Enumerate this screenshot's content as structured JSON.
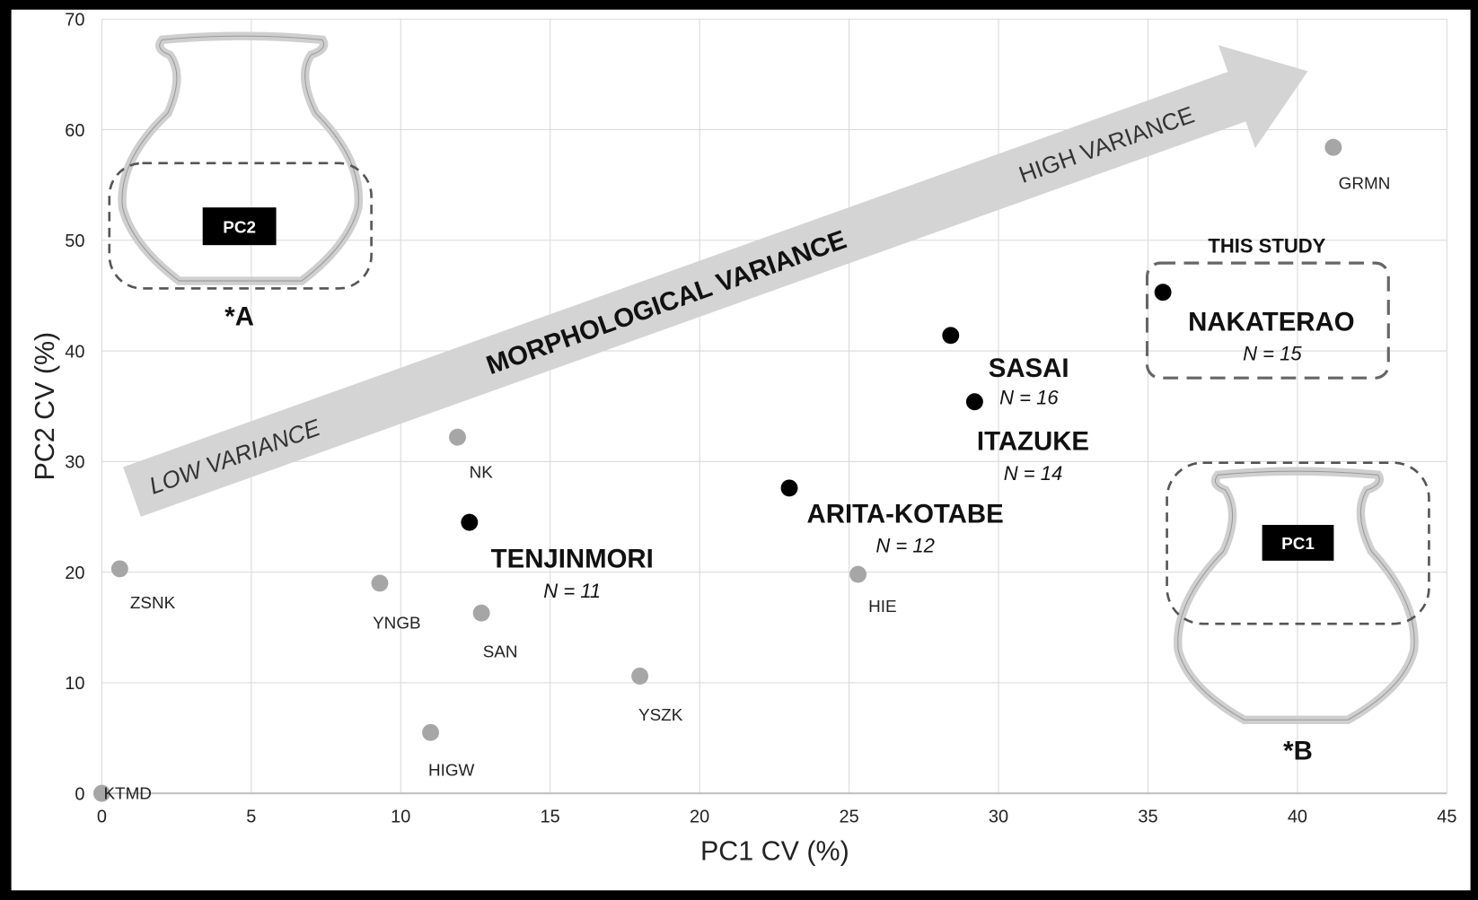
{
  "chart_data": {
    "type": "scatter",
    "title": "",
    "xlabel": "PC1 CV (%)",
    "ylabel": "PC2 CV (%)",
    "xlim": [
      0,
      45
    ],
    "ylim": [
      0,
      70
    ],
    "xticks": [
      0,
      5,
      10,
      15,
      20,
      25,
      30,
      35,
      40,
      45
    ],
    "yticks": [
      0,
      10,
      20,
      30,
      40,
      50,
      60,
      70
    ],
    "grid": true,
    "colors": {
      "reference": "#a6a6a6",
      "study": "#000000"
    },
    "points": [
      {
        "label": "GRMN",
        "x": 41.2,
        "y": 58.4,
        "group": "reference"
      },
      {
        "label": "KTMD",
        "x": 0.0,
        "y": 0.0,
        "group": "reference"
      },
      {
        "label": "ZSNK",
        "x": 0.6,
        "y": 20.3,
        "group": "reference"
      },
      {
        "label": "YNGB",
        "x": 9.3,
        "y": 19.0,
        "group": "reference"
      },
      {
        "label": "NK",
        "x": 11.9,
        "y": 32.2,
        "group": "reference"
      },
      {
        "label": "SAN",
        "x": 12.7,
        "y": 16.3,
        "group": "reference"
      },
      {
        "label": "HIE",
        "x": 25.3,
        "y": 19.8,
        "group": "reference"
      },
      {
        "label": "YSZK",
        "x": 18.0,
        "y": 10.6,
        "group": "reference"
      },
      {
        "label": "HIGW",
        "x": 11.0,
        "y": 5.5,
        "group": "reference"
      },
      {
        "label": "TENJINMORI",
        "n": "N = 11",
        "x": 12.3,
        "y": 24.5,
        "group": "study"
      },
      {
        "label": "ARITA-KOTABE",
        "n": "N = 12",
        "x": 23.0,
        "y": 27.6,
        "group": "study"
      },
      {
        "label": "SASAI",
        "n": "N = 16",
        "x": 28.4,
        "y": 41.4,
        "group": "study"
      },
      {
        "label": "ITAZUKE",
        "n": "N = 14",
        "x": 29.2,
        "y": 35.4,
        "group": "study"
      },
      {
        "label": "NAKATERAO",
        "n": "N = 15",
        "x": 35.5,
        "y": 45.3,
        "group": "study"
      }
    ],
    "annotations": {
      "arrow_low": "LOW VARIANCE",
      "arrow_mid": "MORPHOLOGICAL VARIANCE",
      "arrow_high": "HIGH VARIANCE",
      "this_study": "THIS STUDY",
      "vessel_a_label": "*A",
      "vessel_a_box": "PC2",
      "vessel_b_label": "*B",
      "vessel_b_box": "PC1"
    }
  }
}
